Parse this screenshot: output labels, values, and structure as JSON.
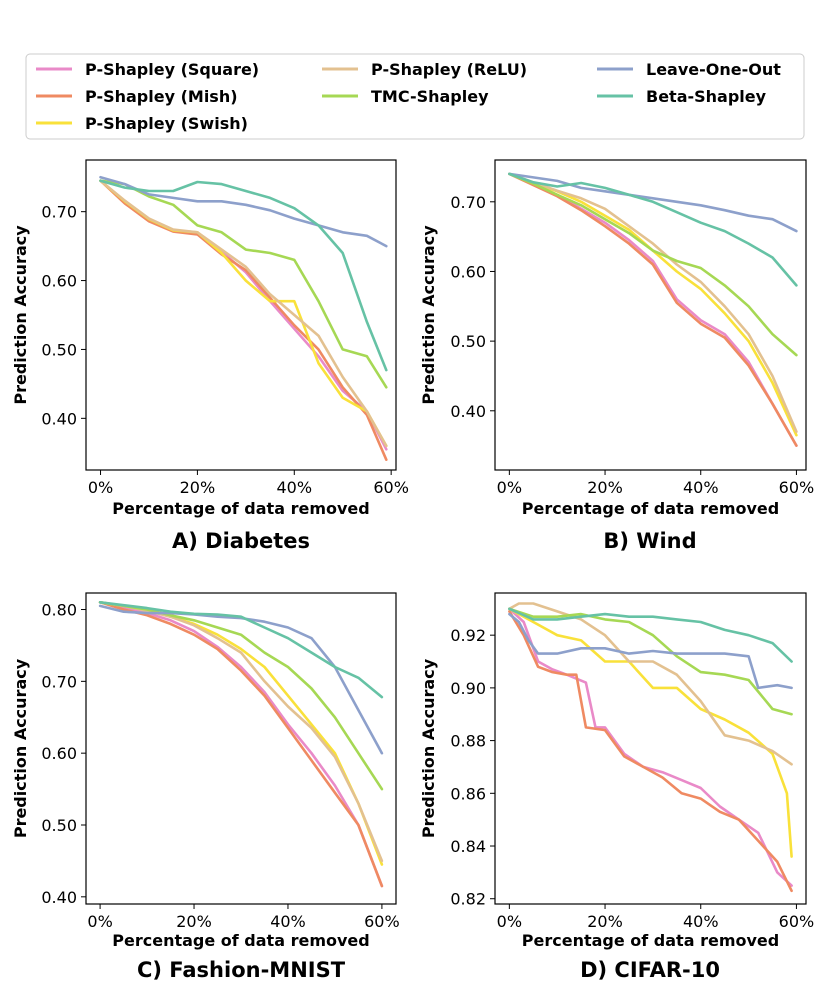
{
  "legend": [
    {
      "key": "square",
      "label": "P-Shapley (Square)",
      "color": "#e98ac8"
    },
    {
      "key": "mish",
      "label": "P-Shapley (Mish)",
      "color": "#ef8a62"
    },
    {
      "key": "swish",
      "label": "P-Shapley (Swish)",
      "color": "#f9e13a"
    },
    {
      "key": "relu",
      "label": "P-Shapley (ReLU)",
      "color": "#e3c190"
    },
    {
      "key": "tmc",
      "label": "TMC-Shapley",
      "color": "#a6d854"
    },
    {
      "key": "loo",
      "label": "Leave-One-Out",
      "color": "#8da0cb"
    },
    {
      "key": "beta",
      "label": "Beta-Shapley",
      "color": "#66c2a5"
    }
  ],
  "chart_data": [
    {
      "type": "line",
      "title": "A) Diabetes",
      "xlabel": "Percentage of data removed",
      "ylabel": "Prediction Accuracy",
      "xlim": [
        -3,
        61
      ],
      "ylim": [
        0.325,
        0.775
      ],
      "xticks": [
        0,
        20,
        40,
        60
      ],
      "xtick_labels": [
        "0%",
        "20%",
        "40%",
        "60%"
      ],
      "yticks": [
        0.4,
        0.5,
        0.6,
        0.7
      ],
      "ytick_labels": [
        "0.40",
        "0.50",
        "0.60",
        "0.70"
      ],
      "series": [
        {
          "key": "square",
          "x": [
            0,
            5,
            10,
            15,
            20,
            25,
            30,
            35,
            40,
            45,
            50,
            55,
            59
          ],
          "y": [
            0.745,
            0.715,
            0.688,
            0.672,
            0.668,
            0.642,
            0.612,
            0.57,
            0.53,
            0.49,
            0.44,
            0.41,
            0.355
          ]
        },
        {
          "key": "mish",
          "x": [
            0,
            5,
            10,
            15,
            20,
            25,
            30,
            35,
            40,
            45,
            50,
            55,
            59
          ],
          "y": [
            0.745,
            0.712,
            0.686,
            0.671,
            0.667,
            0.638,
            0.615,
            0.575,
            0.535,
            0.5,
            0.445,
            0.405,
            0.34
          ]
        },
        {
          "key": "swish",
          "x": [
            0,
            5,
            10,
            15,
            20,
            25,
            30,
            35,
            40,
            45,
            50,
            55,
            59
          ],
          "y": [
            0.745,
            0.715,
            0.689,
            0.673,
            0.67,
            0.64,
            0.6,
            0.57,
            0.57,
            0.48,
            0.43,
            0.41,
            0.36
          ]
        },
        {
          "key": "relu",
          "x": [
            0,
            5,
            10,
            15,
            20,
            25,
            30,
            35,
            40,
            45,
            50,
            55,
            59
          ],
          "y": [
            0.745,
            0.716,
            0.69,
            0.674,
            0.67,
            0.645,
            0.62,
            0.58,
            0.55,
            0.52,
            0.46,
            0.41,
            0.36
          ]
        },
        {
          "key": "tmc",
          "x": [
            0,
            5,
            10,
            15,
            20,
            25,
            30,
            35,
            40,
            45,
            50,
            55,
            59
          ],
          "y": [
            0.745,
            0.74,
            0.722,
            0.71,
            0.68,
            0.67,
            0.645,
            0.64,
            0.63,
            0.57,
            0.5,
            0.49,
            0.445
          ]
        },
        {
          "key": "loo",
          "x": [
            0,
            5,
            10,
            15,
            20,
            25,
            30,
            35,
            40,
            45,
            50,
            55,
            59
          ],
          "y": [
            0.75,
            0.74,
            0.725,
            0.72,
            0.715,
            0.715,
            0.71,
            0.702,
            0.69,
            0.68,
            0.67,
            0.665,
            0.65
          ]
        },
        {
          "key": "beta",
          "x": [
            0,
            5,
            10,
            15,
            20,
            25,
            30,
            35,
            40,
            45,
            50,
            55,
            59
          ],
          "y": [
            0.745,
            0.735,
            0.73,
            0.73,
            0.743,
            0.74,
            0.73,
            0.72,
            0.705,
            0.68,
            0.64,
            0.54,
            0.47
          ]
        }
      ]
    },
    {
      "type": "line",
      "title": "B) Wind",
      "xlabel": "Percentage of data removed",
      "ylabel": "Prediction Accuracy",
      "xlim": [
        -3,
        62
      ],
      "ylim": [
        0.315,
        0.76
      ],
      "xticks": [
        0,
        20,
        40,
        60
      ],
      "xtick_labels": [
        "0%",
        "20%",
        "40%",
        "60%"
      ],
      "yticks": [
        0.4,
        0.5,
        0.6,
        0.7
      ],
      "ytick_labels": [
        "0.40",
        "0.50",
        "0.60",
        "0.70"
      ],
      "series": [
        {
          "key": "square",
          "x": [
            0,
            5,
            10,
            15,
            20,
            25,
            30,
            35,
            40,
            45,
            50,
            55,
            60
          ],
          "y": [
            0.74,
            0.725,
            0.71,
            0.69,
            0.67,
            0.645,
            0.615,
            0.56,
            0.53,
            0.51,
            0.47,
            0.41,
            0.35
          ]
        },
        {
          "key": "mish",
          "x": [
            0,
            5,
            10,
            15,
            20,
            25,
            30,
            35,
            40,
            45,
            50,
            55,
            60
          ],
          "y": [
            0.74,
            0.724,
            0.708,
            0.688,
            0.665,
            0.64,
            0.61,
            0.555,
            0.525,
            0.505,
            0.465,
            0.41,
            0.35
          ]
        },
        {
          "key": "swish",
          "x": [
            0,
            5,
            10,
            15,
            20,
            25,
            30,
            35,
            40,
            45,
            50,
            55,
            60
          ],
          "y": [
            0.74,
            0.727,
            0.715,
            0.7,
            0.68,
            0.66,
            0.63,
            0.6,
            0.575,
            0.54,
            0.5,
            0.44,
            0.365
          ]
        },
        {
          "key": "relu",
          "x": [
            0,
            5,
            10,
            15,
            20,
            25,
            30,
            35,
            40,
            45,
            50,
            55,
            60
          ],
          "y": [
            0.74,
            0.728,
            0.716,
            0.705,
            0.69,
            0.665,
            0.64,
            0.61,
            0.585,
            0.55,
            0.51,
            0.45,
            0.37
          ]
        },
        {
          "key": "tmc",
          "x": [
            0,
            5,
            10,
            15,
            20,
            25,
            30,
            35,
            40,
            45,
            50,
            55,
            60
          ],
          "y": [
            0.74,
            0.726,
            0.71,
            0.695,
            0.675,
            0.655,
            0.63,
            0.615,
            0.605,
            0.58,
            0.55,
            0.51,
            0.48
          ]
        },
        {
          "key": "loo",
          "x": [
            0,
            5,
            10,
            15,
            20,
            25,
            30,
            35,
            40,
            45,
            50,
            55,
            60
          ],
          "y": [
            0.74,
            0.735,
            0.73,
            0.72,
            0.715,
            0.71,
            0.705,
            0.7,
            0.695,
            0.688,
            0.68,
            0.675,
            0.658
          ]
        },
        {
          "key": "beta",
          "x": [
            0,
            5,
            10,
            15,
            20,
            25,
            30,
            35,
            40,
            45,
            50,
            55,
            60
          ],
          "y": [
            0.74,
            0.728,
            0.722,
            0.727,
            0.72,
            0.71,
            0.7,
            0.685,
            0.67,
            0.658,
            0.64,
            0.62,
            0.58
          ]
        }
      ]
    },
    {
      "type": "line",
      "title": "C) Fashion-MNIST",
      "xlabel": "Percentage of data removed",
      "ylabel": "Prediction Accuracy",
      "xlim": [
        -3,
        63
      ],
      "ylim": [
        0.39,
        0.823
      ],
      "xticks": [
        0,
        20,
        40,
        60
      ],
      "xtick_labels": [
        "0%",
        "20%",
        "40%",
        "60%"
      ],
      "yticks": [
        0.4,
        0.5,
        0.6,
        0.7,
        0.8
      ],
      "ytick_labels": [
        "0.40",
        "0.50",
        "0.60",
        "0.70",
        "0.80"
      ],
      "series": [
        {
          "key": "square",
          "x": [
            0,
            5,
            10,
            15,
            20,
            25,
            30,
            35,
            40,
            45,
            50,
            55,
            60
          ],
          "y": [
            0.81,
            0.803,
            0.795,
            0.785,
            0.77,
            0.748,
            0.72,
            0.685,
            0.64,
            0.6,
            0.555,
            0.5,
            0.415
          ]
        },
        {
          "key": "mish",
          "x": [
            0,
            5,
            10,
            15,
            20,
            25,
            30,
            35,
            40,
            45,
            50,
            55,
            60
          ],
          "y": [
            0.81,
            0.8,
            0.792,
            0.78,
            0.765,
            0.745,
            0.715,
            0.68,
            0.635,
            0.59,
            0.545,
            0.5,
            0.415
          ]
        },
        {
          "key": "swish",
          "x": [
            0,
            5,
            10,
            15,
            20,
            25,
            30,
            35,
            40,
            45,
            50,
            55,
            60
          ],
          "y": [
            0.81,
            0.805,
            0.8,
            0.79,
            0.78,
            0.765,
            0.745,
            0.72,
            0.68,
            0.64,
            0.6,
            0.53,
            0.445
          ]
        },
        {
          "key": "relu",
          "x": [
            0,
            5,
            10,
            15,
            20,
            25,
            30,
            35,
            40,
            45,
            50,
            55,
            60
          ],
          "y": [
            0.81,
            0.805,
            0.798,
            0.79,
            0.778,
            0.76,
            0.74,
            0.7,
            0.665,
            0.635,
            0.595,
            0.53,
            0.45
          ]
        },
        {
          "key": "tmc",
          "x": [
            0,
            5,
            10,
            15,
            20,
            25,
            30,
            35,
            40,
            45,
            50,
            55,
            60
          ],
          "y": [
            0.81,
            0.805,
            0.8,
            0.792,
            0.785,
            0.775,
            0.765,
            0.74,
            0.72,
            0.69,
            0.65,
            0.6,
            0.55
          ]
        },
        {
          "key": "loo",
          "x": [
            0,
            5,
            10,
            15,
            20,
            25,
            30,
            35,
            40,
            45,
            50,
            55,
            60
          ],
          "y": [
            0.805,
            0.797,
            0.795,
            0.795,
            0.793,
            0.79,
            0.788,
            0.783,
            0.775,
            0.76,
            0.72,
            0.66,
            0.6
          ]
        },
        {
          "key": "beta",
          "x": [
            0,
            5,
            10,
            15,
            20,
            25,
            30,
            35,
            40,
            45,
            50,
            55,
            60
          ],
          "y": [
            0.81,
            0.806,
            0.802,
            0.797,
            0.794,
            0.793,
            0.79,
            0.775,
            0.76,
            0.74,
            0.72,
            0.705,
            0.678
          ]
        }
      ]
    },
    {
      "type": "line",
      "title": "D) CIFAR-10",
      "xlabel": "Percentage of data removed",
      "ylabel": "Prediction Accuracy",
      "xlim": [
        -3,
        62
      ],
      "ylim": [
        0.818,
        0.936
      ],
      "xticks": [
        0,
        20,
        40,
        60
      ],
      "xtick_labels": [
        "0%",
        "20%",
        "40%",
        "60%"
      ],
      "yticks": [
        0.82,
        0.84,
        0.86,
        0.88,
        0.9,
        0.92
      ],
      "ytick_labels": [
        "0.82",
        "0.84",
        "0.86",
        "0.88",
        "0.90",
        "0.92"
      ],
      "series": [
        {
          "key": "square",
          "x": [
            0,
            3,
            6,
            9,
            12,
            16,
            18,
            20,
            24,
            28,
            32,
            36,
            40,
            44,
            48,
            52,
            56,
            59
          ],
          "y": [
            0.93,
            0.925,
            0.91,
            0.907,
            0.905,
            0.902,
            0.885,
            0.885,
            0.875,
            0.87,
            0.868,
            0.865,
            0.862,
            0.855,
            0.85,
            0.845,
            0.83,
            0.825
          ]
        },
        {
          "key": "mish",
          "x": [
            0,
            3,
            6,
            9,
            12,
            14,
            16,
            20,
            24,
            28,
            32,
            36,
            40,
            44,
            48,
            52,
            56,
            59
          ],
          "y": [
            0.929,
            0.92,
            0.908,
            0.906,
            0.905,
            0.905,
            0.885,
            0.884,
            0.874,
            0.87,
            0.866,
            0.86,
            0.858,
            0.853,
            0.85,
            0.842,
            0.834,
            0.823
          ]
        },
        {
          "key": "swish",
          "x": [
            0,
            5,
            10,
            15,
            20,
            25,
            30,
            35,
            40,
            45,
            50,
            55,
            58,
            59
          ],
          "y": [
            0.93,
            0.925,
            0.92,
            0.918,
            0.91,
            0.91,
            0.9,
            0.9,
            0.892,
            0.888,
            0.883,
            0.875,
            0.86,
            0.836
          ]
        },
        {
          "key": "relu",
          "x": [
            0,
            2,
            5,
            10,
            15,
            20,
            25,
            30,
            35,
            40,
            45,
            50,
            55,
            59
          ],
          "y": [
            0.93,
            0.932,
            0.932,
            0.929,
            0.926,
            0.92,
            0.91,
            0.91,
            0.905,
            0.895,
            0.882,
            0.88,
            0.876,
            0.871
          ]
        },
        {
          "key": "tmc",
          "x": [
            0,
            5,
            10,
            15,
            20,
            25,
            30,
            35,
            40,
            45,
            50,
            55,
            59
          ],
          "y": [
            0.93,
            0.927,
            0.927,
            0.928,
            0.926,
            0.925,
            0.92,
            0.912,
            0.906,
            0.905,
            0.903,
            0.892,
            0.89
          ]
        },
        {
          "key": "loo",
          "x": [
            0,
            2,
            4,
            6,
            10,
            15,
            20,
            25,
            30,
            35,
            40,
            45,
            50,
            52,
            56,
            59
          ],
          "y": [
            0.928,
            0.925,
            0.918,
            0.913,
            0.913,
            0.915,
            0.915,
            0.913,
            0.914,
            0.913,
            0.913,
            0.913,
            0.912,
            0.9,
            0.901,
            0.9
          ]
        },
        {
          "key": "beta",
          "x": [
            0,
            5,
            10,
            15,
            20,
            25,
            30,
            35,
            40,
            45,
            50,
            55,
            59
          ],
          "y": [
            0.93,
            0.926,
            0.926,
            0.927,
            0.928,
            0.927,
            0.927,
            0.926,
            0.925,
            0.922,
            0.92,
            0.917,
            0.91
          ]
        }
      ]
    }
  ]
}
